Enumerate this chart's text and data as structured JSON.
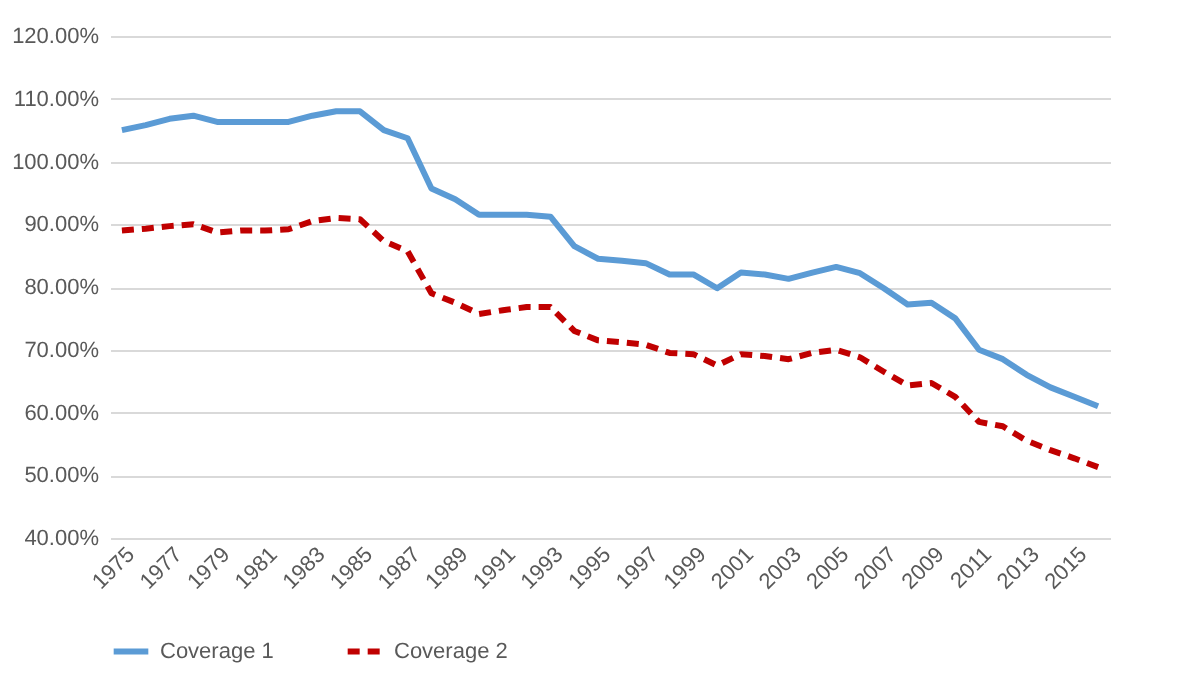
{
  "chart_data": {
    "type": "line",
    "categories": [
      "1975",
      null,
      "1977",
      null,
      "1979",
      null,
      "1981",
      null,
      "1983",
      null,
      "1985",
      null,
      "1987",
      null,
      "1989",
      null,
      "1991",
      null,
      "1993",
      null,
      "1995",
      null,
      "1997",
      null,
      "1999",
      null,
      "2001",
      null,
      "2003",
      null,
      "2005",
      null,
      "2007",
      null,
      "2009",
      null,
      "2011",
      null,
      "2013",
      null,
      "2015",
      null
    ],
    "series": [
      {
        "name": "Coverage 1",
        "color": "#5b9bd5",
        "line_style": "solid",
        "values": [
          105,
          105.8,
          106.8,
          107.3,
          106.3,
          106.3,
          106.3,
          106.3,
          107.3,
          108,
          108,
          105,
          103.7,
          95.7,
          94,
          91.5,
          91.5,
          91.5,
          91.2,
          86.5,
          84.5,
          84.2,
          83.8,
          82,
          82,
          79.8,
          82.3,
          82,
          81.3,
          82.3,
          83.2,
          82.2,
          79.8,
          77.2,
          77.5,
          75,
          70,
          68.5,
          66,
          64,
          62.5,
          61
        ]
      },
      {
        "name": "Coverage 2",
        "color": "#c00000",
        "line_style": "dashed",
        "values": [
          89,
          89.3,
          89.7,
          90,
          88.7,
          89,
          89,
          89.2,
          90.5,
          91,
          90.8,
          87.3,
          85.7,
          79,
          77.5,
          75.7,
          76.3,
          76.8,
          76.8,
          73,
          71.5,
          71.2,
          70.8,
          69.5,
          69.3,
          67.5,
          69.3,
          69,
          68.5,
          69.5,
          70,
          68.8,
          66.5,
          64.3,
          64.7,
          62.5,
          58.5,
          57.8,
          55.5,
          54,
          52.7,
          51.3
        ]
      }
    ],
    "ylim": [
      40,
      120
    ],
    "yticks": [
      {
        "value": 40,
        "label": "40.00%"
      },
      {
        "value": 50,
        "label": "50.00%"
      },
      {
        "value": 60,
        "label": "60.00%"
      },
      {
        "value": 70,
        "label": "70.00%"
      },
      {
        "value": 80,
        "label": "80.00%"
      },
      {
        "value": 90,
        "label": "90.00%"
      },
      {
        "value": 100,
        "label": "100.00%"
      },
      {
        "value": 110,
        "label": "110.00%"
      },
      {
        "value": 120,
        "label": "120.00%"
      }
    ],
    "grid": "y",
    "legend": "bottom",
    "marker": "none"
  }
}
